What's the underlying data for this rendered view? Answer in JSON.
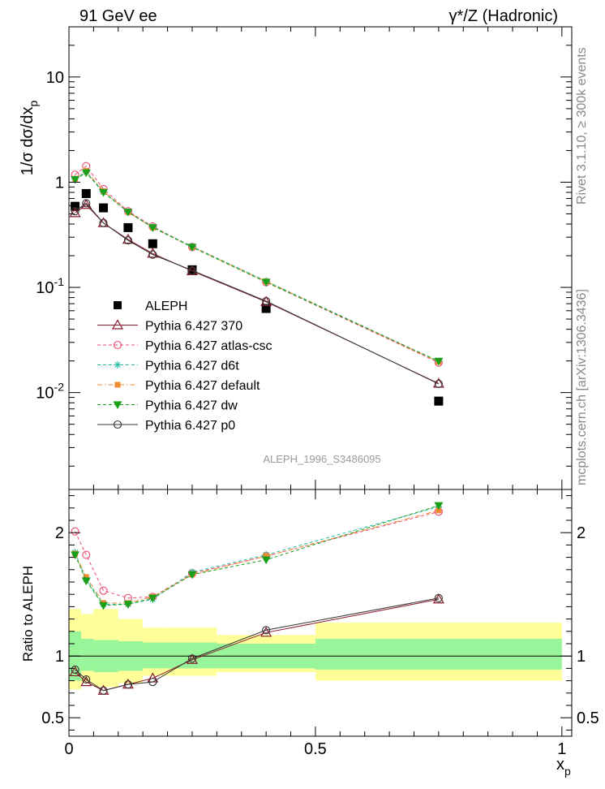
{
  "header": {
    "left": "91 GeV ee",
    "right": "γ*/Z (Hadronic)"
  },
  "side_labels": {
    "top": "Rivet 3.1.10, ≥ 300k events",
    "bottom": "mcplots.cern.ch [arXiv:1306.3436]"
  },
  "reference": "ALEPH_1996_S3486095",
  "chart_data": [
    {
      "type": "scatter",
      "yscale": "log",
      "ylabel": "1/σ dσ/dx_p",
      "xlim": [
        0,
        1.02
      ],
      "ylim": [
        0.0012,
        30
      ],
      "y_ticks": [
        {
          "v": 0.01,
          "base": "10",
          "exp": "-2"
        },
        {
          "v": 0.1,
          "base": "10",
          "exp": "-1"
        },
        {
          "v": 1,
          "base": "1",
          "exp": ""
        },
        {
          "v": 10,
          "base": "10",
          "exp": ""
        }
      ],
      "x": [
        0.0125,
        0.035,
        0.07,
        0.12,
        0.17,
        0.25,
        0.4,
        0.75
      ],
      "series": [
        {
          "name": "ALEPH",
          "color": "#000000",
          "marker": "square-filled",
          "line": "none",
          "values": [
            0.59,
            0.78,
            0.57,
            0.37,
            0.26,
            0.147,
            0.063,
            0.0083
          ]
        },
        {
          "name": "Pythia 6.427 370",
          "color": "#8b1a2c",
          "marker": "triangle-open",
          "line": "solid",
          "values": [
            0.51,
            0.61,
            0.41,
            0.285,
            0.21,
            0.143,
            0.073,
            0.0122
          ]
        },
        {
          "name": "Pythia 6.427 atlas-csc",
          "color": "#ee4a6e",
          "marker": "circle-open",
          "line": "dashed",
          "values": [
            1.18,
            1.42,
            0.86,
            0.53,
            0.38,
            0.242,
            0.112,
            0.0193
          ]
        },
        {
          "name": "Pythia 6.427 d6t",
          "color": "#1fbfa8",
          "marker": "star",
          "line": "dashed",
          "values": [
            1.08,
            1.25,
            0.81,
            0.52,
            0.375,
            0.245,
            0.115,
            0.0198
          ]
        },
        {
          "name": "Pythia 6.427 default",
          "color": "#f28a30",
          "marker": "square-small",
          "line": "dashdot",
          "values": [
            1.08,
            1.28,
            0.82,
            0.52,
            0.37,
            0.243,
            0.114,
            0.0196
          ]
        },
        {
          "name": "Pythia 6.427 dw",
          "color": "#1a9f1a",
          "marker": "triangle-down-filled",
          "line": "dashed",
          "values": [
            1.06,
            1.23,
            0.8,
            0.52,
            0.37,
            0.241,
            0.112,
            0.0199
          ]
        },
        {
          "name": "Pythia 6.427 p0",
          "color": "#333333",
          "marker": "circle-open",
          "line": "solid",
          "values": [
            0.53,
            0.63,
            0.41,
            0.28,
            0.205,
            0.145,
            0.074,
            0.0121
          ]
        }
      ]
    },
    {
      "type": "line",
      "ylabel": "Ratio to ALEPH",
      "xlabel": "x_p",
      "xlim": [
        0,
        1.02
      ],
      "ylim": [
        0.35,
        2.35
      ],
      "y_ticks": [
        0.5,
        1,
        2
      ],
      "x_ticks": [
        0,
        0.5,
        1
      ],
      "x": [
        0.0125,
        0.035,
        0.07,
        0.12,
        0.17,
        0.25,
        0.4,
        0.75
      ],
      "uncertainty_bins": [
        {
          "x0": 0.0,
          "x1": 0.025,
          "stat": [
            0.8,
            1.2
          ],
          "total": [
            0.73,
            1.38
          ]
        },
        {
          "x0": 0.025,
          "x1": 0.05,
          "stat": [
            0.88,
            1.14
          ],
          "total": [
            0.78,
            1.34
          ]
        },
        {
          "x0": 0.05,
          "x1": 0.1,
          "stat": [
            0.87,
            1.13
          ],
          "total": [
            0.75,
            1.38
          ]
        },
        {
          "x0": 0.1,
          "x1": 0.15,
          "stat": [
            0.88,
            1.12
          ],
          "total": [
            0.78,
            1.3
          ]
        },
        {
          "x0": 0.15,
          "x1": 0.2,
          "stat": [
            0.9,
            1.11
          ],
          "total": [
            0.84,
            1.23
          ]
        },
        {
          "x0": 0.2,
          "x1": 0.3,
          "stat": [
            0.9,
            1.11
          ],
          "total": [
            0.84,
            1.23
          ]
        },
        {
          "x0": 0.3,
          "x1": 0.5,
          "stat": [
            0.9,
            1.1
          ],
          "total": [
            0.87,
            1.17
          ]
        },
        {
          "x0": 0.5,
          "x1": 1.0,
          "stat": [
            0.89,
            1.14
          ],
          "total": [
            0.8,
            1.27
          ]
        }
      ],
      "series": [
        {
          "name": "Pythia 6.427 370",
          "color": "#8b1a2c",
          "marker": "triangle-open",
          "line": "solid",
          "values": [
            0.87,
            0.79,
            0.72,
            0.77,
            0.82,
            0.97,
            1.19,
            1.46
          ]
        },
        {
          "name": "Pythia 6.427 atlas-csc",
          "color": "#ee4a6e",
          "marker": "circle-open",
          "line": "dashed",
          "values": [
            2.01,
            1.82,
            1.53,
            1.47,
            1.48,
            1.67,
            1.81,
            2.17
          ]
        },
        {
          "name": "Pythia 6.427 d6t",
          "color": "#1fbfa8",
          "marker": "star",
          "line": "dashed",
          "values": [
            1.84,
            1.62,
            1.42,
            1.42,
            1.46,
            1.68,
            1.82,
            2.21
          ]
        },
        {
          "name": "Pythia 6.427 default",
          "color": "#f28a30",
          "marker": "square-small",
          "line": "dashdot",
          "values": [
            1.83,
            1.64,
            1.43,
            1.43,
            1.48,
            1.66,
            1.81,
            2.18
          ]
        },
        {
          "name": "Pythia 6.427 dw",
          "color": "#1a9f1a",
          "marker": "triangle-down-filled",
          "line": "dashed",
          "values": [
            1.82,
            1.61,
            1.41,
            1.42,
            1.47,
            1.66,
            1.78,
            2.22
          ]
        },
        {
          "name": "Pythia 6.427 p0",
          "color": "#333333",
          "marker": "circle-open",
          "line": "solid",
          "values": [
            0.89,
            0.81,
            0.72,
            0.77,
            0.79,
            0.98,
            1.21,
            1.47
          ]
        }
      ]
    }
  ]
}
